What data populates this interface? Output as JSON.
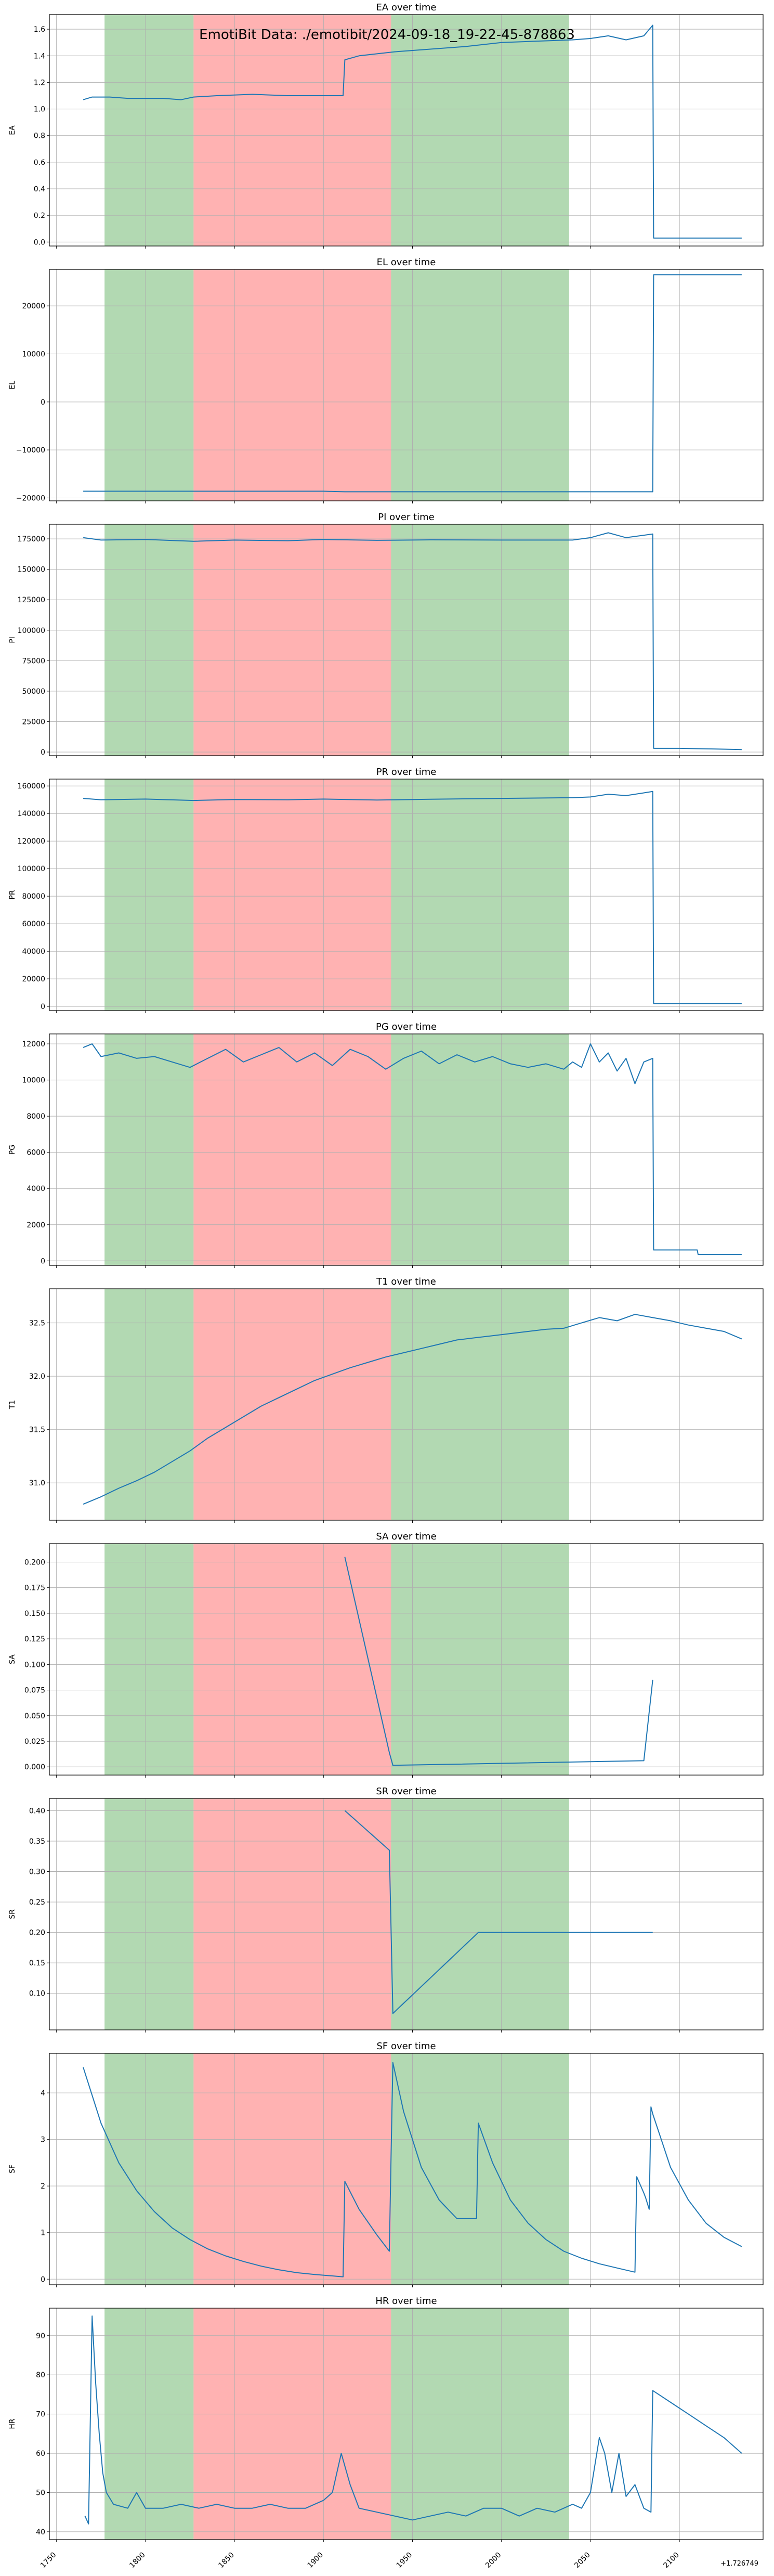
{
  "suptitle": "EmotiBit Data: ./emotibit/2024-09-18_19-22-45-878863",
  "x_offset_label": "+1.726749",
  "x_ticks": [
    "1750",
    "1800",
    "1850",
    "1900",
    "1950",
    "2000",
    "2050",
    "2100"
  ],
  "shaded_regions": [
    {
      "x0": 1777,
      "x1": 1827,
      "color": "#66b366"
    },
    {
      "x0": 1827,
      "x1": 1938,
      "color": "#ff6666"
    },
    {
      "x0": 1938,
      "x1": 2038,
      "color": "#66b366"
    }
  ],
  "line_color": "#1f77b4",
  "chart_data": [
    {
      "type": "line",
      "title": "EA over time",
      "ylabel": "EA",
      "xlim": [
        1746,
        2147
      ],
      "ylim": [
        -0.03,
        1.71
      ],
      "yticks": [
        "0.0",
        "0.2",
        "0.4",
        "0.6",
        "0.8",
        "1.0",
        "1.2",
        "1.4",
        "1.6"
      ],
      "ytick_values": [
        0,
        0.2,
        0.4,
        0.6,
        0.8,
        1.0,
        1.2,
        1.4,
        1.6
      ],
      "x": [
        1765,
        1770,
        1780,
        1790,
        1800,
        1810,
        1820,
        1827,
        1840,
        1860,
        1880,
        1900,
        1911,
        1912,
        1920,
        1940,
        1960,
        1980,
        2000,
        2020,
        2040,
        2050,
        2060,
        2070,
        2080,
        2085,
        2085.5,
        2090,
        2100,
        2120,
        2135
      ],
      "y": [
        1.07,
        1.09,
        1.09,
        1.08,
        1.08,
        1.08,
        1.07,
        1.09,
        1.1,
        1.11,
        1.1,
        1.1,
        1.1,
        1.37,
        1.4,
        1.43,
        1.45,
        1.47,
        1.5,
        1.51,
        1.52,
        1.53,
        1.55,
        1.52,
        1.55,
        1.63,
        0.03,
        0.03,
        0.03,
        0.03,
        0.03
      ]
    },
    {
      "type": "line",
      "title": "EL over time",
      "ylabel": "EL",
      "xlim": [
        1746,
        2147
      ],
      "ylim": [
        -20600,
        27600
      ],
      "yticks": [
        "−20000",
        "−10000",
        "0",
        "10000",
        "20000"
      ],
      "ytick_values": [
        -20000,
        -10000,
        0,
        10000,
        20000
      ],
      "x": [
        1765,
        1800,
        1850,
        1900,
        1912,
        1950,
        2000,
        2050,
        2085,
        2085.5,
        2100,
        2135
      ],
      "y": [
        -18600,
        -18600,
        -18600,
        -18600,
        -18700,
        -18700,
        -18700,
        -18700,
        -18700,
        26500,
        26500,
        26500
      ]
    },
    {
      "type": "line",
      "title": "PI over time",
      "ylabel": "PI",
      "xlim": [
        1746,
        2147
      ],
      "ylim": [
        -3000,
        187000
      ],
      "yticks": [
        "0",
        "25000",
        "50000",
        "75000",
        "100000",
        "125000",
        "150000",
        "175000"
      ],
      "ytick_values": [
        0,
        25000,
        50000,
        75000,
        100000,
        125000,
        150000,
        175000
      ],
      "x": [
        1765,
        1775,
        1800,
        1827,
        1850,
        1880,
        1900,
        1930,
        1960,
        2000,
        2040,
        2050,
        2060,
        2070,
        2080,
        2085,
        2085.5,
        2100,
        2120,
        2135
      ],
      "y": [
        176000,
        174000,
        174500,
        173000,
        174000,
        173500,
        174500,
        173800,
        174200,
        174000,
        174000,
        176000,
        180000,
        176000,
        178000,
        179000,
        3000,
        3000,
        2500,
        2000
      ]
    },
    {
      "type": "line",
      "title": "PR over time",
      "ylabel": "PR",
      "xlim": [
        1746,
        2147
      ],
      "ylim": [
        -3000,
        165000
      ],
      "yticks": [
        "0",
        "20000",
        "40000",
        "60000",
        "80000",
        "100000",
        "120000",
        "140000",
        "160000"
      ],
      "ytick_values": [
        0,
        20000,
        40000,
        60000,
        80000,
        100000,
        120000,
        140000,
        160000
      ],
      "x": [
        1765,
        1775,
        1800,
        1827,
        1850,
        1880,
        1900,
        1930,
        1960,
        2000,
        2040,
        2050,
        2060,
        2070,
        2080,
        2085,
        2085.5,
        2100,
        2120,
        2135
      ],
      "y": [
        151000,
        150000,
        150500,
        149500,
        150200,
        150000,
        150500,
        149800,
        150400,
        151000,
        151500,
        152000,
        154000,
        153000,
        155000,
        156000,
        2000,
        2000,
        2000,
        2000
      ]
    },
    {
      "type": "line",
      "title": "PG over time",
      "ylabel": "PG",
      "xlim": [
        1746,
        2147
      ],
      "ylim": [
        -250,
        12550
      ],
      "yticks": [
        "0",
        "2000",
        "4000",
        "6000",
        "8000",
        "10000",
        "12000"
      ],
      "ytick_values": [
        0,
        2000,
        4000,
        6000,
        8000,
        10000,
        12000
      ],
      "x": [
        1765,
        1770,
        1775,
        1785,
        1795,
        1805,
        1815,
        1825,
        1835,
        1845,
        1855,
        1865,
        1875,
        1885,
        1895,
        1905,
        1915,
        1925,
        1935,
        1945,
        1955,
        1965,
        1975,
        1985,
        1995,
        2005,
        2015,
        2025,
        2035,
        2040,
        2045,
        2050,
        2055,
        2060,
        2065,
        2070,
        2075,
        2080,
        2085,
        2085.5,
        2095,
        2105,
        2110,
        2110.5,
        2120,
        2135
      ],
      "y": [
        11800,
        12000,
        11300,
        11500,
        11200,
        11300,
        11000,
        10700,
        11200,
        11700,
        11000,
        11400,
        11800,
        11000,
        11500,
        10800,
        11700,
        11300,
        10600,
        11200,
        11600,
        10900,
        11400,
        11000,
        11300,
        10900,
        10700,
        10900,
        10600,
        11000,
        10700,
        12000,
        11000,
        11500,
        10500,
        11200,
        9800,
        11000,
        11200,
        600,
        600,
        600,
        600,
        350,
        350,
        350
      ]
    },
    {
      "type": "line",
      "title": "T1 over time",
      "ylabel": "T1",
      "xlim": [
        1746,
        2147
      ],
      "ylim": [
        30.65,
        32.82
      ],
      "yticks": [
        "31.0",
        "31.5",
        "32.0",
        "32.5"
      ],
      "ytick_values": [
        31.0,
        31.5,
        32.0,
        32.5
      ],
      "x": [
        1765,
        1775,
        1785,
        1795,
        1805,
        1815,
        1825,
        1835,
        1845,
        1855,
        1865,
        1875,
        1885,
        1895,
        1905,
        1915,
        1925,
        1935,
        1945,
        1955,
        1965,
        1975,
        1985,
        1995,
        2005,
        2015,
        2025,
        2035,
        2045,
        2055,
        2065,
        2075,
        2085,
        2095,
        2105,
        2115,
        2125,
        2135
      ],
      "y": [
        30.8,
        30.87,
        30.95,
        31.02,
        31.1,
        31.2,
        31.3,
        31.42,
        31.52,
        31.62,
        31.72,
        31.8,
        31.88,
        31.96,
        32.02,
        32.08,
        32.13,
        32.18,
        32.22,
        32.26,
        32.3,
        32.34,
        32.36,
        32.38,
        32.4,
        32.42,
        32.44,
        32.45,
        32.5,
        32.55,
        32.52,
        32.58,
        32.55,
        32.52,
        32.48,
        32.45,
        32.42,
        32.35
      ]
    },
    {
      "type": "line",
      "title": "SA over time",
      "ylabel": "SA",
      "xlim": [
        1746,
        2147
      ],
      "ylim": [
        -0.008,
        0.218
      ],
      "yticks": [
        "0.000",
        "0.025",
        "0.050",
        "0.075",
        "0.100",
        "0.125",
        "0.150",
        "0.175",
        "0.200"
      ],
      "ytick_values": [
        0,
        0.025,
        0.05,
        0.075,
        0.1,
        0.125,
        0.15,
        0.175,
        0.2
      ],
      "x": [
        1912,
        1937,
        1939,
        2080,
        2085
      ],
      "y": [
        0.205,
        0.014,
        0.0015,
        0.006,
        0.085
      ]
    },
    {
      "type": "line",
      "title": "SR over time",
      "ylabel": "SR",
      "xlim": [
        1746,
        2147
      ],
      "ylim": [
        0.04,
        0.42
      ],
      "yticks": [
        "0.10",
        "0.15",
        "0.20",
        "0.25",
        "0.30",
        "0.35",
        "0.40"
      ],
      "ytick_values": [
        0.1,
        0.15,
        0.2,
        0.25,
        0.3,
        0.35,
        0.4
      ],
      "x": [
        1912,
        1937,
        1939,
        1987,
        2085
      ],
      "y": [
        0.4,
        0.335,
        0.067,
        0.2,
        0.2
      ]
    },
    {
      "type": "line",
      "title": "SF over time",
      "ylabel": "SF",
      "xlim": [
        1746,
        2147
      ],
      "ylim": [
        -0.12,
        4.85
      ],
      "yticks": [
        "0",
        "1",
        "2",
        "3",
        "4"
      ],
      "ytick_values": [
        0,
        1,
        2,
        3,
        4
      ],
      "x": [
        1765,
        1775,
        1785,
        1795,
        1805,
        1815,
        1825,
        1835,
        1845,
        1855,
        1865,
        1875,
        1885,
        1895,
        1905,
        1911,
        1912,
        1920,
        1930,
        1937,
        1938,
        1939,
        1945,
        1955,
        1965,
        1975,
        1986,
        1987,
        1995,
        2005,
        2015,
        2025,
        2035,
        2045,
        2055,
        2065,
        2075,
        2076,
        2080,
        2081,
        2083,
        2084,
        2085,
        2095,
        2105,
        2115,
        2125,
        2135
      ],
      "y": [
        4.55,
        3.35,
        2.5,
        1.9,
        1.45,
        1.1,
        0.85,
        0.65,
        0.5,
        0.38,
        0.28,
        0.2,
        0.14,
        0.1,
        0.07,
        0.05,
        2.1,
        1.5,
        0.95,
        0.6,
        2.7,
        4.65,
        3.6,
        2.4,
        1.7,
        1.3,
        1.3,
        3.35,
        2.5,
        1.7,
        1.2,
        0.85,
        0.6,
        0.45,
        0.33,
        0.24,
        0.15,
        2.2,
        1.85,
        1.75,
        1.5,
        3.7,
        3.55,
        2.4,
        1.7,
        1.2,
        0.9,
        0.7
      ]
    },
    {
      "type": "line",
      "title": "HR over time",
      "ylabel": "HR",
      "xlim": [
        1746,
        2147
      ],
      "ylim": [
        38,
        97
      ],
      "yticks": [
        "40",
        "50",
        "60",
        "70",
        "80",
        "90"
      ],
      "ytick_values": [
        40,
        50,
        60,
        70,
        80,
        90
      ],
      "x": [
        1766,
        1768,
        1770,
        1772,
        1774,
        1776,
        1778,
        1782,
        1790,
        1795,
        1800,
        1810,
        1820,
        1830,
        1840,
        1850,
        1860,
        1870,
        1880,
        1890,
        1900,
        1905,
        1910,
        1915,
        1920,
        1930,
        1940,
        1950,
        1960,
        1970,
        1980,
        1990,
        2000,
        2010,
        2020,
        2030,
        2040,
        2045,
        2050,
        2055,
        2058,
        2062,
        2066,
        2070,
        2075,
        2080,
        2084,
        2085,
        2095,
        2105,
        2115,
        2125,
        2135
      ],
      "y": [
        44,
        42,
        95,
        78,
        65,
        55,
        50,
        47,
        46,
        50,
        46,
        46,
        47,
        46,
        47,
        46,
        46,
        47,
        46,
        46,
        48,
        50,
        60,
        52,
        46,
        45,
        44,
        43,
        44,
        45,
        44,
        46,
        46,
        44,
        46,
        45,
        47,
        46,
        50,
        64,
        60,
        50,
        60,
        49,
        52,
        46,
        45,
        76,
        73,
        70,
        67,
        64,
        60
      ]
    }
  ]
}
